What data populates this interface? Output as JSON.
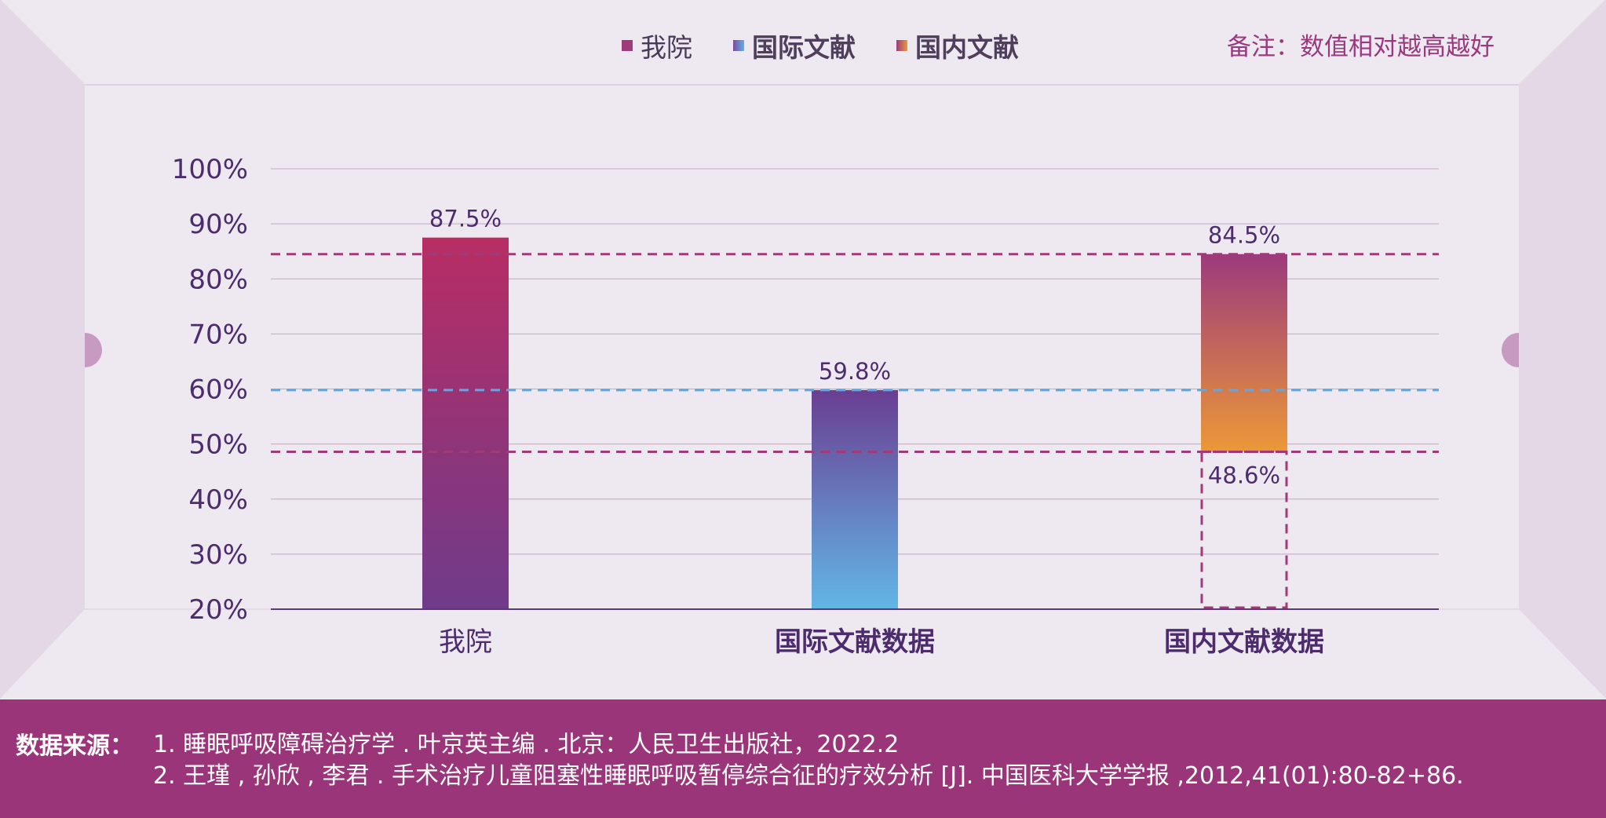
{
  "legend": [
    {
      "label": "我院",
      "color": "#a03a78",
      "bold": false
    },
    {
      "label": "国际文献",
      "color": "#5d7cc6",
      "bold": true
    },
    {
      "label": "国内文献",
      "color": "#e08a3e",
      "bold": true
    }
  ],
  "note": "备注：数值相对越高越好",
  "chart_data": {
    "type": "bar",
    "categories": [
      "我院",
      "国际文献数据",
      "国内文献数据"
    ],
    "values": [
      87.5,
      59.8,
      84.5
    ],
    "range_low": 48.6,
    "value_labels": [
      "87.5%",
      "59.8%",
      "84.5%"
    ],
    "low_label": "48.6%",
    "yticks": [
      "100%",
      "90%",
      "80%",
      "70%",
      "60%",
      "50%",
      "40%",
      "30%",
      "20%"
    ],
    "ylim": [
      20,
      100
    ],
    "reference_lines": [
      84.5,
      59.8,
      48.6
    ],
    "colors": {
      "bar1_top": "#b82d64",
      "bar1_bottom": "#6f3b8a",
      "bar2_top": "#6a3e92",
      "bar2_bottom": "#62b6e6",
      "bar3_top": "#9c3a7c",
      "bar3_bottom": "#ec9838",
      "dashed_purple": "#a03a78",
      "dashed_blue": "#5ea8e8",
      "axis_text": "#4d2c6e"
    }
  },
  "footer": {
    "title": "数据来源：",
    "lines": [
      "1. 睡眠呼吸障碍治疗学 . 叶京英主编 . 北京：人民卫生出版社，2022.2",
      "2. 王瑾 , 孙欣 , 李君 . 手术治疗儿童阻塞性睡眠呼吸暂停综合征的疗效分析 [J]. 中国医科大学学报 ,2012,41(01):80-82+86."
    ]
  }
}
